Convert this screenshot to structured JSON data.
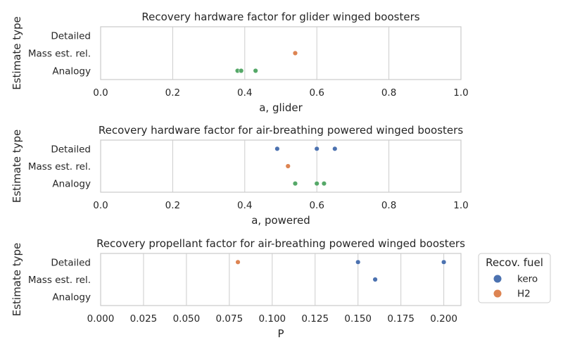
{
  "legend": {
    "title": "Recov. fuel",
    "items": [
      {
        "label": "kero",
        "color": "#4c72b0"
      },
      {
        "label": "H2",
        "color": "#dd8452"
      }
    ]
  },
  "chart_data": [
    {
      "type": "scatter",
      "title": "Recovery hardware factor for glider winged boosters",
      "xlabel": "a, glider",
      "ylabel": "Estimate type",
      "categories": [
        "Detailed",
        "Mass est. rel.",
        "Analogy"
      ],
      "xlim": [
        0.0,
        1.0
      ],
      "xticks": [
        "0.0",
        "0.2",
        "0.4",
        "0.6",
        "0.8",
        "1.0"
      ],
      "grid": "x",
      "points": [
        {
          "category": "Mass est. rel.",
          "x": 0.54,
          "color": "#dd8452"
        },
        {
          "category": "Analogy",
          "x": 0.38,
          "color": "#55a868"
        },
        {
          "category": "Analogy",
          "x": 0.39,
          "color": "#55a868"
        },
        {
          "category": "Analogy",
          "x": 0.43,
          "color": "#55a868"
        }
      ]
    },
    {
      "type": "scatter",
      "title": "Recovery hardware factor for air-breathing powered winged boosters",
      "xlabel": "a, powered",
      "ylabel": "Estimate type",
      "categories": [
        "Detailed",
        "Mass est. rel.",
        "Analogy"
      ],
      "xlim": [
        0.0,
        1.0
      ],
      "xticks": [
        "0.0",
        "0.2",
        "0.4",
        "0.6",
        "0.8",
        "1.0"
      ],
      "grid": "x",
      "points": [
        {
          "category": "Detailed",
          "x": 0.49,
          "color": "#4c72b0"
        },
        {
          "category": "Detailed",
          "x": 0.6,
          "color": "#4c72b0"
        },
        {
          "category": "Detailed",
          "x": 0.65,
          "color": "#4c72b0"
        },
        {
          "category": "Mass est. rel.",
          "x": 0.52,
          "color": "#dd8452"
        },
        {
          "category": "Analogy",
          "x": 0.54,
          "color": "#55a868"
        },
        {
          "category": "Analogy",
          "x": 0.6,
          "color": "#55a868"
        },
        {
          "category": "Analogy",
          "x": 0.62,
          "color": "#55a868"
        }
      ]
    },
    {
      "type": "scatter",
      "title": "Recovery propellant factor for air-breathing powered winged boosters",
      "xlabel": "P",
      "ylabel": "Estimate type",
      "categories": [
        "Detailed",
        "Mass est. rel.",
        "Analogy"
      ],
      "xlim": [
        0.0,
        0.21
      ],
      "xticks": [
        "0.000",
        "0.025",
        "0.050",
        "0.075",
        "0.100",
        "0.125",
        "0.150",
        "0.175",
        "0.200"
      ],
      "grid": "x",
      "points": [
        {
          "category": "Detailed",
          "x": 0.08,
          "color": "#dd8452"
        },
        {
          "category": "Detailed",
          "x": 0.15,
          "color": "#4c72b0"
        },
        {
          "category": "Detailed",
          "x": 0.2,
          "color": "#4c72b0"
        },
        {
          "category": "Mass est. rel.",
          "x": 0.16,
          "color": "#4c72b0"
        }
      ]
    }
  ]
}
